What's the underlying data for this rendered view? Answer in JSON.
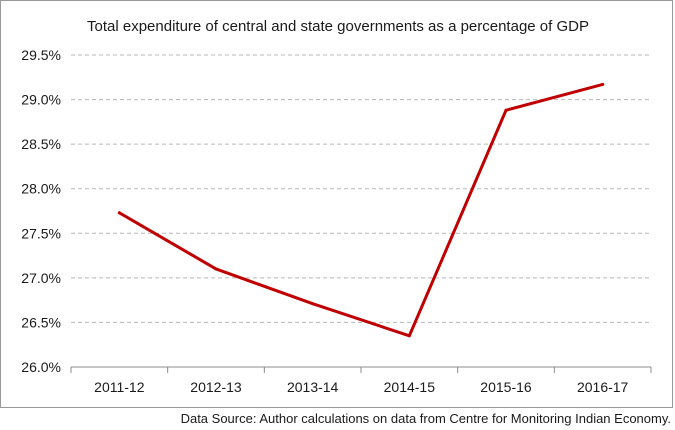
{
  "chart_data": {
    "type": "line",
    "title": "Total expenditure of central and state governments as a percentage of GDP",
    "xlabel": "",
    "ylabel": "",
    "categories": [
      "2011-12",
      "2012-13",
      "2013-14",
      "2014-15",
      "2015-16",
      "2016-17"
    ],
    "series": [
      {
        "values": [
          27.73,
          27.1,
          26.71,
          26.35,
          28.88,
          29.17
        ]
      }
    ],
    "ylim": [
      26.0,
      29.5
    ],
    "yticks": [
      "26.0%",
      "26.5%",
      "27.0%",
      "27.5%",
      "28.0%",
      "28.5%",
      "29.0%",
      "29.5%"
    ],
    "grid": true,
    "line_color": "#c00000"
  },
  "source_note": "Data Source: Author calculations on data from Centre for Monitoring Indian Economy."
}
